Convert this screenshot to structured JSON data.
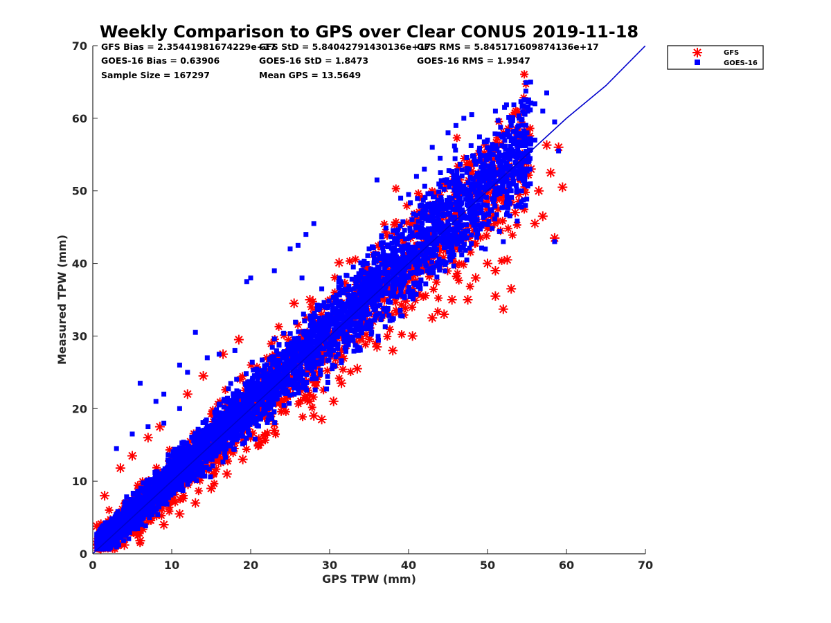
{
  "chart_data": {
    "type": "scatter",
    "title": "Weekly Comparison to GPS over Clear CONUS 2019-11-18",
    "xlabel": "GPS TPW (mm)",
    "ylabel": "Measured TPW (mm)",
    "xlim": [
      0,
      70
    ],
    "ylim": [
      0,
      70
    ],
    "xticks": [
      "0",
      "10",
      "20",
      "30",
      "40",
      "50",
      "60",
      "70"
    ],
    "yticks": [
      "0",
      "10",
      "20",
      "30",
      "40",
      "50",
      "60",
      "70"
    ],
    "grid": false,
    "legend_position": "outside-top-right",
    "stats": [
      [
        "GFS Bias = 2.35441981674229e+17",
        "GFS StD = 5.84042791430136e+17",
        "GFS RMS = 5.845171609874136e+17"
      ],
      [
        "GOES-16 Bias = 0.63906",
        "GOES-16 StD = 1.8473",
        "GOES-16 RMS = 1.9547"
      ],
      [
        "Sample Size = 167297",
        "Mean GPS = 13.5649",
        ""
      ]
    ],
    "series": [
      {
        "name": "GFS",
        "marker": "asterisk",
        "color": "#ff0000",
        "outliers": [
          [
            3.5,
            11.8
          ],
          [
            5,
            13.5
          ],
          [
            7,
            16
          ],
          [
            8.5,
            17.5
          ],
          [
            12,
            22
          ],
          [
            14,
            24.5
          ],
          [
            16.5,
            27.5
          ],
          [
            18.5,
            29.5
          ],
          [
            25.5,
            34.5
          ],
          [
            27.5,
            35
          ],
          [
            31.2,
            40.1
          ],
          [
            25,
            22
          ],
          [
            27.5,
            21
          ],
          [
            28,
            19
          ],
          [
            29,
            18.5
          ],
          [
            30.5,
            21
          ],
          [
            31.5,
            23.5
          ],
          [
            33.5,
            25.5
          ],
          [
            36,
            28.5
          ],
          [
            38,
            28
          ],
          [
            40.5,
            30
          ],
          [
            43,
            32.5
          ],
          [
            44.5,
            33
          ],
          [
            45.5,
            35
          ],
          [
            47.5,
            35
          ],
          [
            48.5,
            38
          ],
          [
            50,
            40
          ],
          [
            51,
            39
          ],
          [
            52.5,
            40.5
          ],
          [
            53,
            36.5
          ],
          [
            52,
            33.7
          ],
          [
            51,
            35.5
          ],
          [
            56,
            45.5
          ],
          [
            57,
            46.5
          ],
          [
            58.5,
            43.5
          ],
          [
            59.5,
            50.5
          ],
          [
            58,
            52.5
          ],
          [
            57.5,
            56.3
          ],
          [
            59,
            56
          ],
          [
            55.5,
            53
          ],
          [
            54,
            49.5
          ],
          [
            53.5,
            47
          ],
          [
            56.5,
            50
          ],
          [
            2,
            1
          ],
          [
            4,
            1.2
          ],
          [
            6,
            1.8
          ],
          [
            9,
            4
          ],
          [
            11,
            5.5
          ],
          [
            13,
            7
          ],
          [
            15,
            9
          ],
          [
            17,
            11
          ],
          [
            19,
            13
          ],
          [
            21,
            15
          ],
          [
            23,
            17
          ],
          [
            44.5,
            51
          ],
          [
            1,
            0.7
          ],
          [
            0.5,
            3.8
          ],
          [
            1.5,
            8
          ]
        ]
      },
      {
        "name": "GOES-16",
        "marker": "square",
        "color": "#0000ff",
        "outliers": [
          [
            6,
            23.5
          ],
          [
            8,
            21
          ],
          [
            9,
            22
          ],
          [
            11,
            26
          ],
          [
            12,
            25
          ],
          [
            13,
            30.5
          ],
          [
            14.5,
            27
          ],
          [
            16,
            27.5
          ],
          [
            18,
            28
          ],
          [
            19.5,
            37.5
          ],
          [
            20,
            38
          ],
          [
            23,
            39
          ],
          [
            25,
            42
          ],
          [
            26,
            42.5
          ],
          [
            27,
            44
          ],
          [
            28,
            45.5
          ],
          [
            26.5,
            38
          ],
          [
            29,
            36.5
          ],
          [
            33,
            39.5
          ],
          [
            35,
            42
          ],
          [
            36,
            51.5
          ],
          [
            39,
            49
          ],
          [
            40,
            49.5
          ],
          [
            41,
            52
          ],
          [
            42,
            53
          ],
          [
            43,
            56
          ],
          [
            44,
            54.5
          ],
          [
            45,
            58
          ],
          [
            46,
            59
          ],
          [
            47,
            60
          ],
          [
            48,
            60.5
          ],
          [
            50,
            57
          ],
          [
            51,
            61
          ],
          [
            53,
            59
          ],
          [
            54,
            60
          ],
          [
            55,
            61.5
          ],
          [
            56,
            62
          ],
          [
            57.5,
            63.5
          ],
          [
            58.5,
            59.5
          ],
          [
            59,
            55.5
          ],
          [
            56,
            57
          ],
          [
            54.5,
            55
          ],
          [
            58.5,
            43
          ],
          [
            52,
            43
          ],
          [
            3,
            14.5
          ],
          [
            5,
            16.5
          ],
          [
            9,
            18
          ],
          [
            11,
            20
          ],
          [
            7,
            17.5
          ],
          [
            45,
            45
          ],
          [
            48,
            46
          ],
          [
            50,
            48
          ],
          [
            52,
            51
          ],
          [
            53,
            50
          ],
          [
            55,
            58
          ],
          [
            57,
            61
          ],
          [
            20.5,
            21.5
          ],
          [
            30.5,
            33.5
          ]
        ]
      }
    ],
    "reference_line": [
      [
        0,
        0
      ],
      [
        10,
        10
      ],
      [
        20,
        20
      ],
      [
        30,
        30
      ],
      [
        40,
        40
      ],
      [
        50,
        50
      ],
      [
        55,
        55
      ],
      [
        60,
        60
      ],
      [
        65,
        64.5
      ],
      [
        70,
        70
      ]
    ],
    "legend": [
      "GFS",
      "GOES-16"
    ]
  }
}
